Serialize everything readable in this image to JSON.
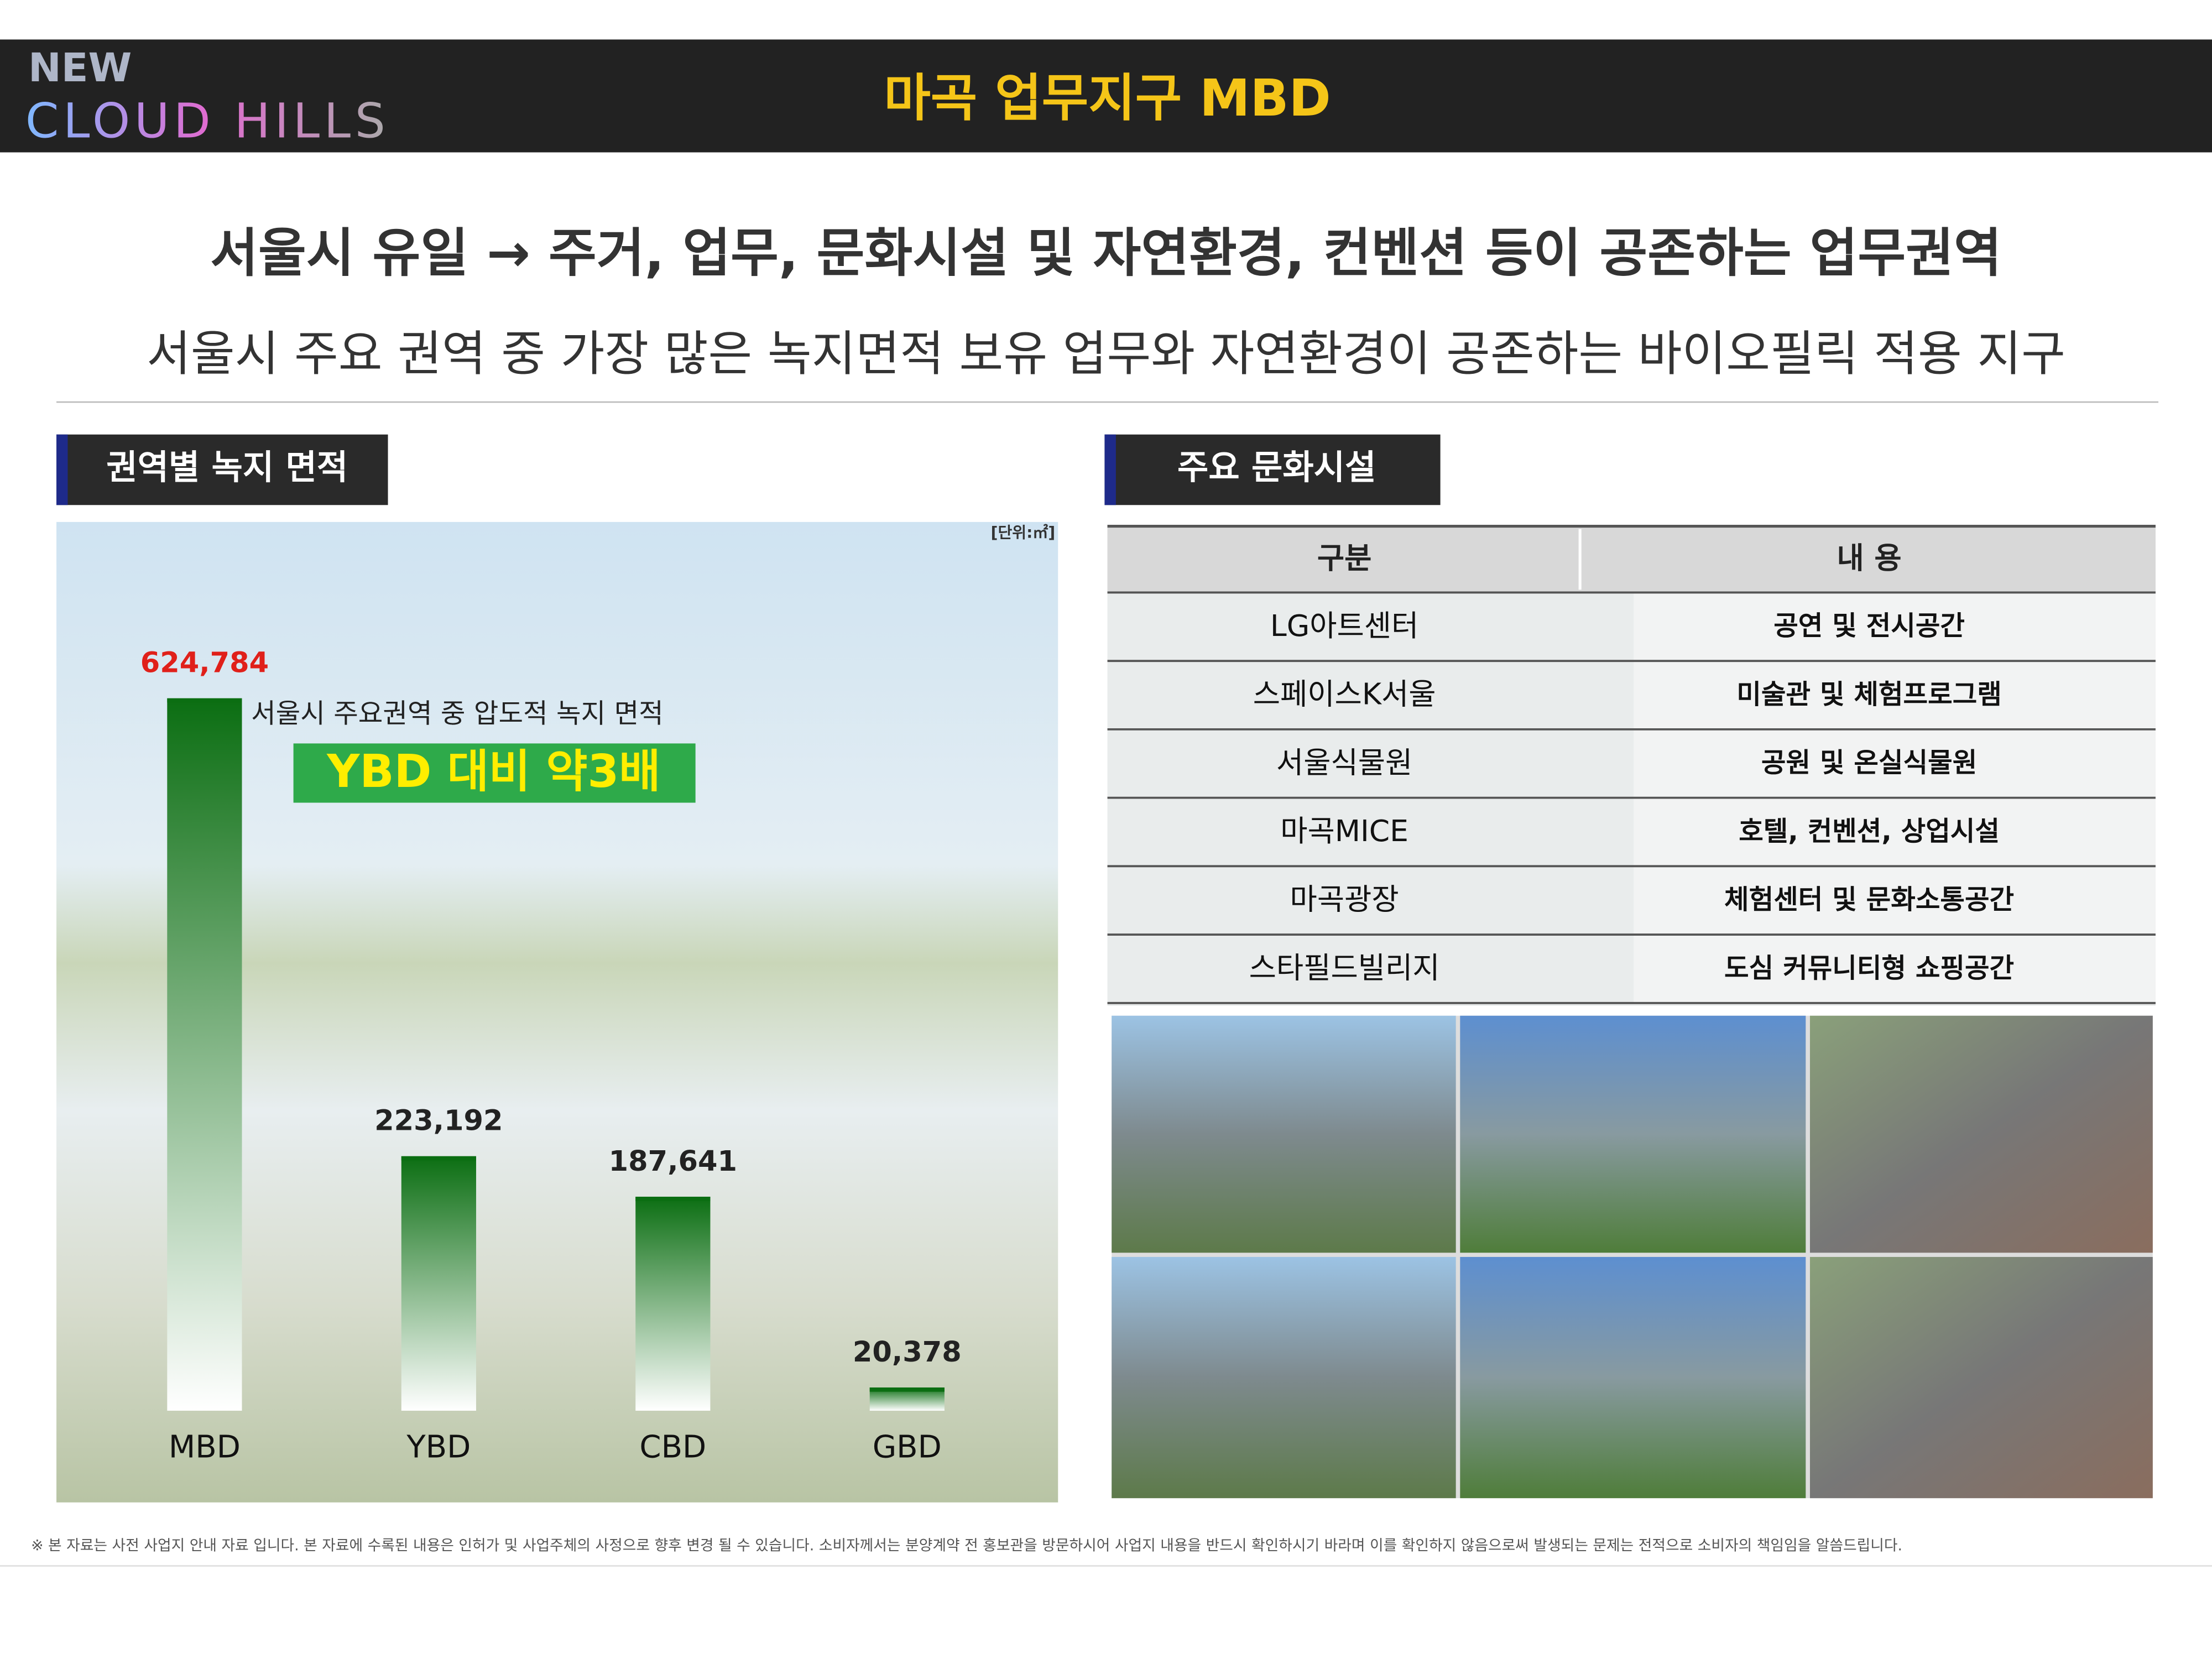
{
  "header": {
    "logo_top": "NEW",
    "logo_bottom": "CLOUD HILLS",
    "title": "마곡 업무지구 MBD"
  },
  "headline": {
    "main": "서울시 유일 → 주거, 업무, 문화시설 및 자연환경, 컨벤션 등이 공존하는 업무권역",
    "sub": "서울시 주요 권역 중 가장 많은 녹지면적 보유 업무와 자연환경이 공존하는 바이오필릭 적용 지구"
  },
  "chart_data": {
    "type": "bar",
    "title": "권역별 녹지 면적",
    "unit": "[단위:㎡]",
    "annotation": "서울시 주요권역 중 압도적 녹지 면적",
    "highlight": "YBD 대비 약3배",
    "categories": [
      "MBD",
      "YBD",
      "CBD",
      "GBD"
    ],
    "values": [
      624784,
      223192,
      187641,
      20378
    ],
    "value_labels": [
      "624,784",
      "223,192",
      "187,641",
      "20,378"
    ],
    "color": "#0b6e12",
    "highlight_color": "#e0201a"
  },
  "table": {
    "title": "주요 문화시설",
    "headers": [
      "구분",
      "내 용"
    ],
    "rows": [
      [
        "LG아트센터",
        "공연 및 전시공간"
      ],
      [
        "스페이스K서울",
        "미술관 및 체험프로그램"
      ],
      [
        "서울식물원",
        "공원 및 온실식물원"
      ],
      [
        "마곡MICE",
        "호텔, 컨벤션, 상업시설"
      ],
      [
        "마곡광장",
        "체험센터 및 문화소통공간"
      ],
      [
        "스타필드빌리지",
        "도심 커뮤니티형 쇼핑공간"
      ]
    ]
  },
  "footnote": "※ 본 자료는 사전 사업지 안내 자료 입니다. 본 자료에 수록된 내용은 인허가 및 사업주체의 사정으로 향후 변경 될 수 있습니다. 소비자께서는 분양계약 전 홍보관을 방문하시어 사업지 내용을 반드시 확인하시기 바라며 이를 확인하지 않음으로써 발생되는 문제는 전적으로 소비자의 책임임을 알씀드립니다."
}
